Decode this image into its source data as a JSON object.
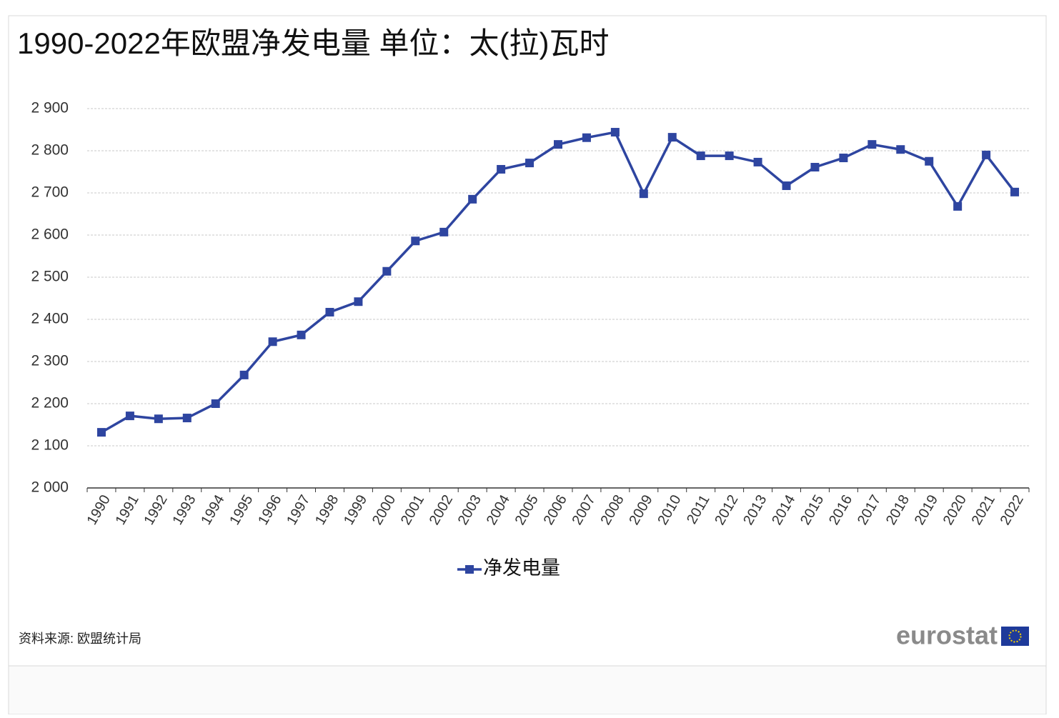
{
  "chart_data": {
    "type": "line",
    "title": "1990-2022年欧盟净发电量 单位：太(拉)瓦时",
    "categories": [
      "1990",
      "1991",
      "1992",
      "1993",
      "1994",
      "1995",
      "1996",
      "1997",
      "1998",
      "1999",
      "2000",
      "2001",
      "2002",
      "2003",
      "2004",
      "2005",
      "2006",
      "2007",
      "2008",
      "2009",
      "2010",
      "2011",
      "2012",
      "2013",
      "2014",
      "2015",
      "2016",
      "2017",
      "2018",
      "2019",
      "2020",
      "2021",
      "2022"
    ],
    "series": [
      {
        "name": "净发电量",
        "color": "#2e45a0",
        "values": [
          2132,
          2171,
          2164,
          2166,
          2200,
          2268,
          2347,
          2363,
          2417,
          2442,
          2514,
          2586,
          2607,
          2685,
          2756,
          2771,
          2815,
          2831,
          2844,
          2698,
          2832,
          2788,
          2788,
          2773,
          2717,
          2761,
          2783,
          2815,
          2803,
          2775,
          2668,
          2790,
          2702
        ]
      }
    ],
    "ylim": [
      2000,
      2900
    ],
    "yticks": [
      {
        "value": 2000,
        "label": "2 000"
      },
      {
        "value": 2100,
        "label": "2 100"
      },
      {
        "value": 2200,
        "label": "2 200"
      },
      {
        "value": 2300,
        "label": "2 300"
      },
      {
        "value": 2400,
        "label": "2 400"
      },
      {
        "value": 2500,
        "label": "2 500"
      },
      {
        "value": 2600,
        "label": "2 600"
      },
      {
        "value": 2700,
        "label": "2 700"
      },
      {
        "value": 2800,
        "label": "2 800"
      },
      {
        "value": 2900,
        "label": "2 900"
      }
    ],
    "grid": true,
    "legend": "bottom",
    "source": "资料来源: 欧盟统计局",
    "logo": "eurostat"
  }
}
